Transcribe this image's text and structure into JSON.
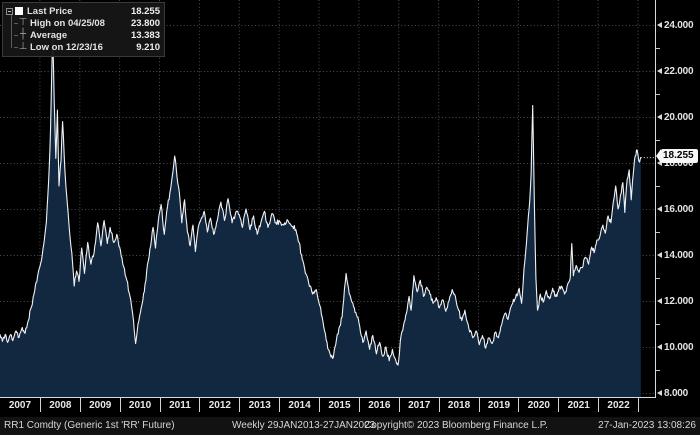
{
  "legend": {
    "rows": [
      {
        "id": "last-price",
        "icon": "white-square-marker",
        "glyph": "",
        "label": "Last Price",
        "value": "18.255"
      },
      {
        "id": "high",
        "icon": "high-tick",
        "glyph": "⊤",
        "label": "High on 04/25/08",
        "value": "23.800"
      },
      {
        "id": "average",
        "icon": "average-cross",
        "glyph": "┼",
        "label": "Average",
        "value": "13.383"
      },
      {
        "id": "low",
        "icon": "low-tick",
        "glyph": "⊥",
        "label": "Low on 12/23/16",
        "value": "9.210"
      }
    ]
  },
  "y_axis": {
    "major_ticks": [
      {
        "label": "24.000",
        "value": 24
      },
      {
        "label": "22.000",
        "value": 22
      },
      {
        "label": "20.000",
        "value": 20
      },
      {
        "label": "18.000",
        "value": 18
      },
      {
        "label": "16.000",
        "value": 16
      },
      {
        "label": "14.000",
        "value": 14
      },
      {
        "label": "12.000",
        "value": 12
      },
      {
        "label": "10.000",
        "value": 10
      },
      {
        "label": "8.000",
        "value": 8
      }
    ],
    "minor_tick_values": [
      9,
      11,
      13,
      15,
      17,
      19,
      21,
      23
    ],
    "last_price_label": "18.255",
    "last_price_value": 18.255
  },
  "x_axis": {
    "years": [
      "2007",
      "2008",
      "2009",
      "2010",
      "2011",
      "2012",
      "2013",
      "2014",
      "2015",
      "2016",
      "2017",
      "2018",
      "2019",
      "2020",
      "2021",
      "2022"
    ]
  },
  "footer": {
    "instrument": "RR1 Comdty (Generic 1st 'RR' Future)",
    "range": "Weekly 29JAN2013-27JAN2023",
    "copyright": "Copyright© 2023 Bloomberg Finance L.P.",
    "timestamp": "27-Jan-2023 13:08:26"
  },
  "colors": {
    "background": "#000000",
    "area_fill": "#122840",
    "line": "#f0f3f5",
    "grid": "#9fb0bd",
    "axis": "#d5dade",
    "text": "#e8e8e8",
    "legend_bg": "#161616",
    "muted_icon": "#9aa0a6",
    "last_price_tag_bg": "#f6f6f6",
    "last_price_tag_text": "#000000"
  },
  "chart_data": {
    "type": "area",
    "title": "RR1 Comdty (Generic 1st 'RR' Future)",
    "frequency": "Weekly",
    "period": "29JAN2013-27JAN2023",
    "legend_position": "top-left",
    "grid": "dotted",
    "xlabel": "",
    "ylabel": "",
    "x_range": [
      2007.0,
      2023.07
    ],
    "ylim": [
      8,
      24
    ],
    "x_tick_years": [
      2007,
      2008,
      2009,
      2010,
      2011,
      2012,
      2013,
      2014,
      2015,
      2016,
      2017,
      2018,
      2019,
      2020,
      2021,
      2022
    ],
    "stats": {
      "last": 18.255,
      "high": {
        "date": "04/25/08",
        "value": 23.8
      },
      "average": 13.383,
      "low": {
        "date": "12/23/16",
        "value": 9.21
      }
    },
    "noise_amplitude": 0.13,
    "series": [
      {
        "name": "Last Price",
        "points": [
          [
            2007.0,
            10.55
          ],
          [
            2007.06,
            10.25
          ],
          [
            2007.13,
            10.55
          ],
          [
            2007.19,
            10.2
          ],
          [
            2007.25,
            10.5
          ],
          [
            2007.32,
            10.28
          ],
          [
            2007.4,
            10.7
          ],
          [
            2007.48,
            10.42
          ],
          [
            2007.56,
            10.85
          ],
          [
            2007.63,
            10.6
          ],
          [
            2007.71,
            11.15
          ],
          [
            2007.79,
            11.75
          ],
          [
            2007.87,
            12.45
          ],
          [
            2007.94,
            13.05
          ],
          [
            2008.02,
            13.65
          ],
          [
            2008.1,
            14.5
          ],
          [
            2008.16,
            15.4
          ],
          [
            2008.22,
            17.2
          ],
          [
            2008.27,
            19.6
          ],
          [
            2008.32,
            23.8
          ],
          [
            2008.36,
            20.7
          ],
          [
            2008.4,
            18.2
          ],
          [
            2008.44,
            20.3
          ],
          [
            2008.48,
            17.0
          ],
          [
            2008.53,
            18.1
          ],
          [
            2008.57,
            19.8
          ],
          [
            2008.63,
            17.6
          ],
          [
            2008.69,
            16.2
          ],
          [
            2008.74,
            15.1
          ],
          [
            2008.8,
            14.1
          ],
          [
            2008.86,
            12.65
          ],
          [
            2008.92,
            13.3
          ],
          [
            2008.98,
            12.85
          ],
          [
            2009.05,
            14.3
          ],
          [
            2009.12,
            13.2
          ],
          [
            2009.2,
            14.55
          ],
          [
            2009.28,
            13.6
          ],
          [
            2009.36,
            14.1
          ],
          [
            2009.45,
            15.4
          ],
          [
            2009.53,
            14.4
          ],
          [
            2009.61,
            15.5
          ],
          [
            2009.69,
            14.5
          ],
          [
            2009.76,
            15.2
          ],
          [
            2009.85,
            14.55
          ],
          [
            2009.93,
            14.9
          ],
          [
            2010.02,
            14.2
          ],
          [
            2010.1,
            13.5
          ],
          [
            2010.18,
            12.9
          ],
          [
            2010.26,
            12.2
          ],
          [
            2010.33,
            11.4
          ],
          [
            2010.4,
            10.15
          ],
          [
            2010.46,
            11.0
          ],
          [
            2010.54,
            11.7
          ],
          [
            2010.62,
            12.4
          ],
          [
            2010.7,
            13.6
          ],
          [
            2010.78,
            14.4
          ],
          [
            2010.84,
            15.2
          ],
          [
            2010.9,
            14.3
          ],
          [
            2010.97,
            15.5
          ],
          [
            2011.04,
            16.2
          ],
          [
            2011.12,
            14.9
          ],
          [
            2011.2,
            16.1
          ],
          [
            2011.28,
            16.9
          ],
          [
            2011.38,
            18.3
          ],
          [
            2011.44,
            17.4
          ],
          [
            2011.5,
            16.7
          ],
          [
            2011.56,
            15.4
          ],
          [
            2011.63,
            16.4
          ],
          [
            2011.7,
            15.0
          ],
          [
            2011.77,
            14.4
          ],
          [
            2011.84,
            15.3
          ],
          [
            2011.9,
            14.15
          ],
          [
            2011.97,
            15.2
          ],
          [
            2012.05,
            15.6
          ],
          [
            2012.12,
            15.9
          ],
          [
            2012.2,
            15.0
          ],
          [
            2012.28,
            15.6
          ],
          [
            2012.36,
            14.9
          ],
          [
            2012.45,
            15.5
          ],
          [
            2012.54,
            16.3
          ],
          [
            2012.63,
            15.5
          ],
          [
            2012.72,
            16.45
          ],
          [
            2012.82,
            15.4
          ],
          [
            2012.92,
            15.9
          ],
          [
            2013.0,
            15.75
          ],
          [
            2013.08,
            15.2
          ],
          [
            2013.17,
            16.0
          ],
          [
            2013.27,
            15.1
          ],
          [
            2013.36,
            15.7
          ],
          [
            2013.45,
            14.9
          ],
          [
            2013.54,
            15.4
          ],
          [
            2013.63,
            15.9
          ],
          [
            2013.72,
            15.2
          ],
          [
            2013.82,
            15.8
          ],
          [
            2013.92,
            15.4
          ],
          [
            2014.02,
            15.45
          ],
          [
            2014.12,
            15.3
          ],
          [
            2014.22,
            15.5
          ],
          [
            2014.32,
            15.25
          ],
          [
            2014.42,
            15.1
          ],
          [
            2014.5,
            14.55
          ],
          [
            2014.58,
            13.8
          ],
          [
            2014.66,
            13.2
          ],
          [
            2014.74,
            12.8
          ],
          [
            2014.84,
            12.3
          ],
          [
            2014.93,
            12.5
          ],
          [
            2015.02,
            11.8
          ],
          [
            2015.1,
            11.1
          ],
          [
            2015.18,
            10.3
          ],
          [
            2015.26,
            9.8
          ],
          [
            2015.34,
            9.5
          ],
          [
            2015.42,
            10.1
          ],
          [
            2015.5,
            10.8
          ],
          [
            2015.58,
            11.3
          ],
          [
            2015.68,
            13.2
          ],
          [
            2015.76,
            12.3
          ],
          [
            2015.85,
            11.9
          ],
          [
            2015.94,
            11.4
          ],
          [
            2016.02,
            10.9
          ],
          [
            2016.1,
            10.2
          ],
          [
            2016.18,
            10.7
          ],
          [
            2016.27,
            9.9
          ],
          [
            2016.35,
            10.5
          ],
          [
            2016.44,
            9.7
          ],
          [
            2016.52,
            10.2
          ],
          [
            2016.6,
            9.6
          ],
          [
            2016.68,
            10.0
          ],
          [
            2016.76,
            9.4
          ],
          [
            2016.84,
            9.9
          ],
          [
            2016.91,
            9.5
          ],
          [
            2016.98,
            9.21
          ],
          [
            2017.06,
            10.5
          ],
          [
            2017.14,
            11.1
          ],
          [
            2017.21,
            11.6
          ],
          [
            2017.26,
            12.2
          ],
          [
            2017.31,
            11.6
          ],
          [
            2017.38,
            13.1
          ],
          [
            2017.46,
            12.4
          ],
          [
            2017.54,
            12.9
          ],
          [
            2017.62,
            12.2
          ],
          [
            2017.7,
            12.6
          ],
          [
            2017.78,
            12.3
          ],
          [
            2017.86,
            11.9
          ],
          [
            2017.94,
            12.15
          ],
          [
            2018.02,
            11.7
          ],
          [
            2018.1,
            12.05
          ],
          [
            2018.18,
            11.55
          ],
          [
            2018.26,
            12.0
          ],
          [
            2018.34,
            12.5
          ],
          [
            2018.42,
            12.2
          ],
          [
            2018.5,
            11.6
          ],
          [
            2018.58,
            11.15
          ],
          [
            2018.66,
            11.6
          ],
          [
            2018.76,
            10.8
          ],
          [
            2018.86,
            10.4
          ],
          [
            2018.94,
            10.7
          ],
          [
            2019.02,
            10.1
          ],
          [
            2019.1,
            10.5
          ],
          [
            2019.18,
            9.95
          ],
          [
            2019.26,
            10.4
          ],
          [
            2019.34,
            10.15
          ],
          [
            2019.42,
            10.65
          ],
          [
            2019.5,
            10.4
          ],
          [
            2019.58,
            10.95
          ],
          [
            2019.66,
            11.45
          ],
          [
            2019.74,
            11.2
          ],
          [
            2019.84,
            11.85
          ],
          [
            2019.93,
            12.15
          ],
          [
            2020.02,
            12.55
          ],
          [
            2020.08,
            11.9
          ],
          [
            2020.14,
            13.4
          ],
          [
            2020.2,
            14.5
          ],
          [
            2020.27,
            16.0
          ],
          [
            2020.32,
            17.5
          ],
          [
            2020.36,
            20.5
          ],
          [
            2020.4,
            16.4
          ],
          [
            2020.44,
            13.0
          ],
          [
            2020.48,
            11.6
          ],
          [
            2020.55,
            12.3
          ],
          [
            2020.62,
            11.95
          ],
          [
            2020.7,
            12.45
          ],
          [
            2020.78,
            12.1
          ],
          [
            2020.86,
            12.55
          ],
          [
            2020.93,
            12.2
          ],
          [
            2021.0,
            12.4
          ],
          [
            2021.08,
            12.65
          ],
          [
            2021.16,
            12.3
          ],
          [
            2021.24,
            12.75
          ],
          [
            2021.3,
            13.0
          ],
          [
            2021.34,
            14.5
          ],
          [
            2021.38,
            13.1
          ],
          [
            2021.45,
            13.55
          ],
          [
            2021.52,
            13.25
          ],
          [
            2021.6,
            13.45
          ],
          [
            2021.68,
            13.9
          ],
          [
            2021.76,
            13.6
          ],
          [
            2021.84,
            14.35
          ],
          [
            2021.9,
            14.1
          ],
          [
            2021.97,
            14.65
          ],
          [
            2022.05,
            14.85
          ],
          [
            2022.12,
            15.3
          ],
          [
            2022.18,
            14.95
          ],
          [
            2022.25,
            15.7
          ],
          [
            2022.32,
            15.4
          ],
          [
            2022.38,
            16.3
          ],
          [
            2022.44,
            17.0
          ],
          [
            2022.5,
            16.0
          ],
          [
            2022.56,
            16.6
          ],
          [
            2022.62,
            17.15
          ],
          [
            2022.67,
            15.85
          ],
          [
            2022.73,
            17.3
          ],
          [
            2022.78,
            17.7
          ],
          [
            2022.83,
            16.4
          ],
          [
            2022.88,
            17.5
          ],
          [
            2022.93,
            18.3
          ],
          [
            2022.98,
            18.55
          ],
          [
            2023.02,
            18.1
          ],
          [
            2023.07,
            18.255
          ]
        ]
      }
    ]
  }
}
